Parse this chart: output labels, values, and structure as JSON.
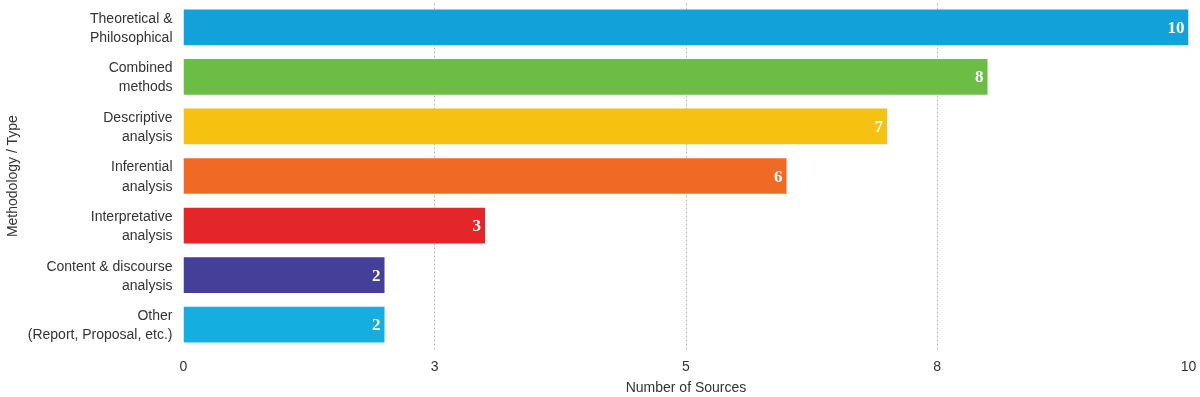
{
  "chart_data": {
    "type": "bar",
    "orientation": "horizontal",
    "xlabel": "Number of Sources",
    "ylabel": "Methodology / Type",
    "categories": [
      "Theoretical &\nPhilosophical",
      "Combined\nmethods",
      "Descriptive\nanalysis",
      "Inferential\nanalysis",
      "Interpretative\nanalysis",
      "Content & discourse\nanalysis",
      "Other\n(Report, Proposal, etc.)"
    ],
    "values": [
      10,
      8,
      7,
      6,
      3,
      2,
      2
    ],
    "colors": [
      "#13a1da",
      "#6bbd45",
      "#f5c211",
      "#f06a25",
      "#e3262a",
      "#443f98",
      "#14aee0"
    ],
    "xlim": [
      0,
      10
    ],
    "xticks": [
      0,
      {
        "value": 2.5,
        "label": "3"
      },
      5,
      {
        "value": 7.5,
        "label": "8"
      },
      10
    ],
    "grid": "x",
    "data_labels": true
  }
}
